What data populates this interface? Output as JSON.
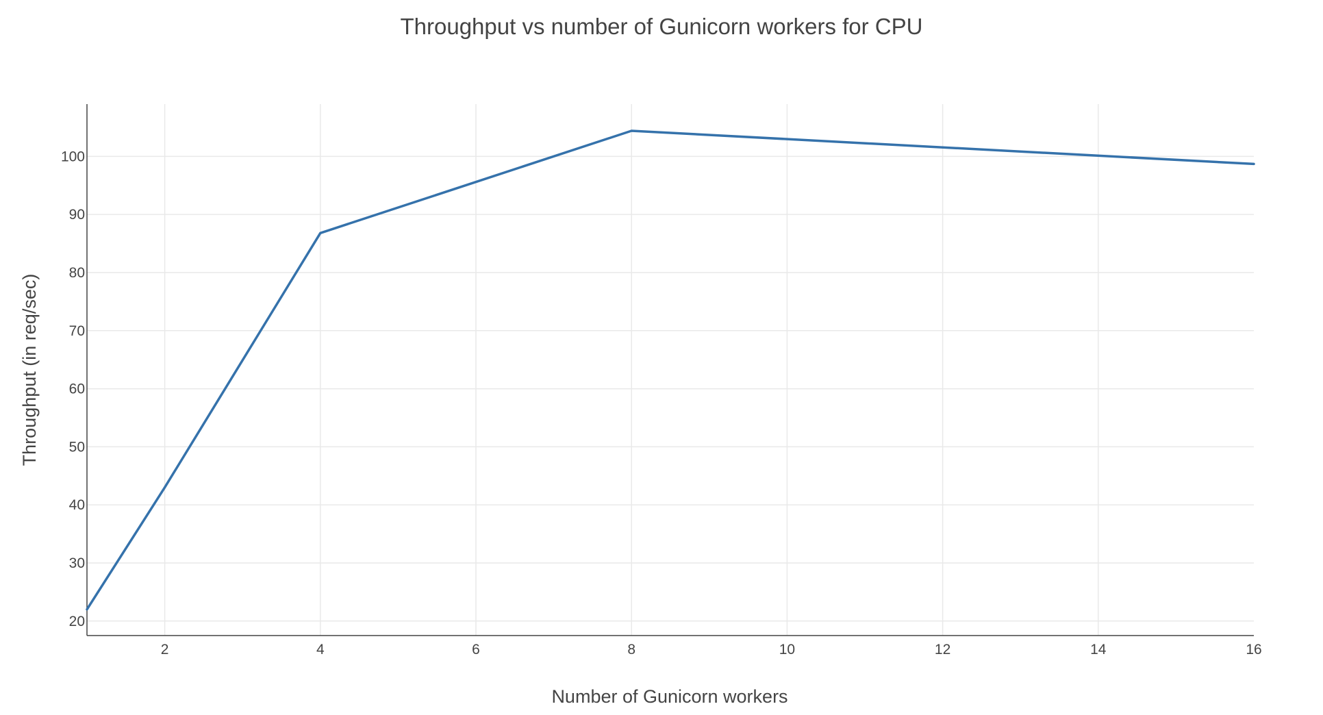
{
  "chart_data": {
    "type": "line",
    "title": "Throughput vs number of Gunicorn workers for CPU",
    "xlabel": "Number of Gunicorn workers",
    "ylabel": "Throughput (in req/sec)",
    "xlim": [
      1,
      16
    ],
    "ylim": [
      17.5,
      109
    ],
    "x_ticks": [
      2,
      4,
      6,
      8,
      10,
      12,
      14,
      16
    ],
    "y_ticks": [
      20,
      30,
      40,
      50,
      60,
      70,
      80,
      90,
      100
    ],
    "grid": true,
    "legend": "none",
    "series": [
      {
        "color": "#3572ab",
        "x": [
          1,
          2,
          4,
          8,
          16
        ],
        "y": [
          22,
          43,
          86.8,
          104.4,
          98.7
        ]
      }
    ]
  }
}
